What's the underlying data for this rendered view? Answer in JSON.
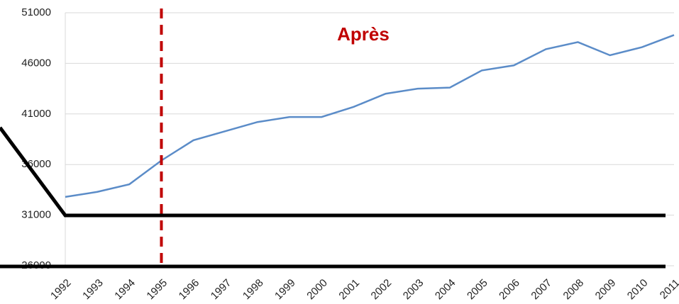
{
  "chart_data": {
    "type": "line",
    "categories": [
      "1992",
      "1993",
      "1994",
      "1995",
      "1996",
      "1997",
      "1998",
      "1999",
      "2000",
      "2001",
      "2002",
      "2003",
      "2004",
      "2005",
      "2006",
      "2007",
      "2008",
      "2009",
      "2010",
      "2011"
    ],
    "series": [
      {
        "color": "#5b8cc8",
        "values": [
          32800,
          33300,
          34050,
          36400,
          38400,
          39300,
          40200,
          40700,
          40700,
          41700,
          43000,
          43500,
          43600,
          45300,
          45800,
          47400,
          48100,
          46800,
          47600,
          48800
        ]
      }
    ],
    "ylim": [
      26000,
      51000
    ],
    "yticks": [
      26000,
      31000,
      36000,
      41000,
      46000,
      51000
    ],
    "grid": true,
    "vline": "1995",
    "vline_color": "#c00000",
    "annotation": {
      "text": "Après",
      "color": "#c00000"
    }
  }
}
